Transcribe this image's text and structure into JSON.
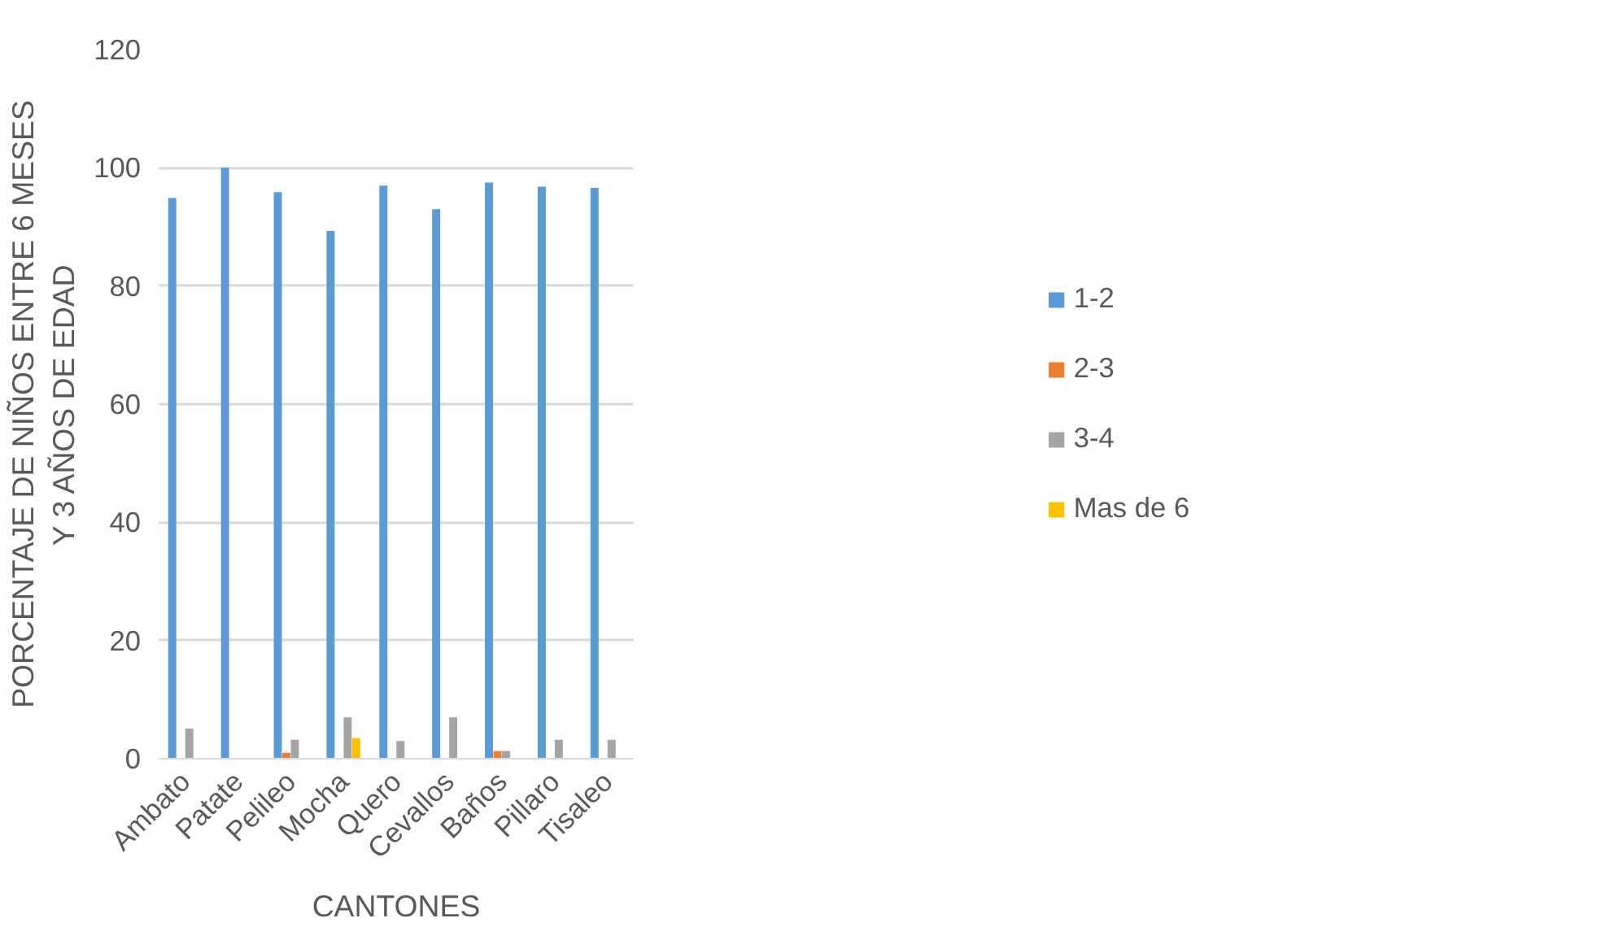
{
  "chart_data": {
    "type": "bar",
    "xlabel": "CANTONES",
    "ylabel": "PORCENTAJE DE NIÑOS ENTRE 6 MESES\nY 3 AÑOS DE EDAD",
    "categories": [
      "Ambato",
      "Patate",
      "Pelileo",
      "Mocha",
      "Quero",
      "Cevallos",
      "Baños",
      "Pillaro",
      "Tisaleo"
    ],
    "series": [
      {
        "name": "1-2",
        "color": "#5b9bd5",
        "values": [
          94.9,
          100,
          95.9,
          89.3,
          97,
          93,
          97.5,
          96.8,
          96.6
        ]
      },
      {
        "name": "2-3",
        "color": "#ed7d31",
        "values": [
          0,
          0,
          1,
          0,
          0,
          0,
          1.3,
          0,
          0
        ]
      },
      {
        "name": "3-4",
        "color": "#a5a5a5",
        "values": [
          5.1,
          0,
          3.2,
          7,
          3,
          7,
          1.3,
          3.2,
          3.2
        ]
      },
      {
        "name": "Mas de 6",
        "color": "#ffc000",
        "values": [
          0,
          0,
          0,
          3.5,
          0,
          0,
          0,
          0,
          0
        ]
      }
    ],
    "ylim": [
      0,
      120
    ],
    "yticks": [
      0,
      20,
      40,
      60,
      80,
      100,
      120
    ],
    "grid": "y",
    "legend": "right"
  }
}
